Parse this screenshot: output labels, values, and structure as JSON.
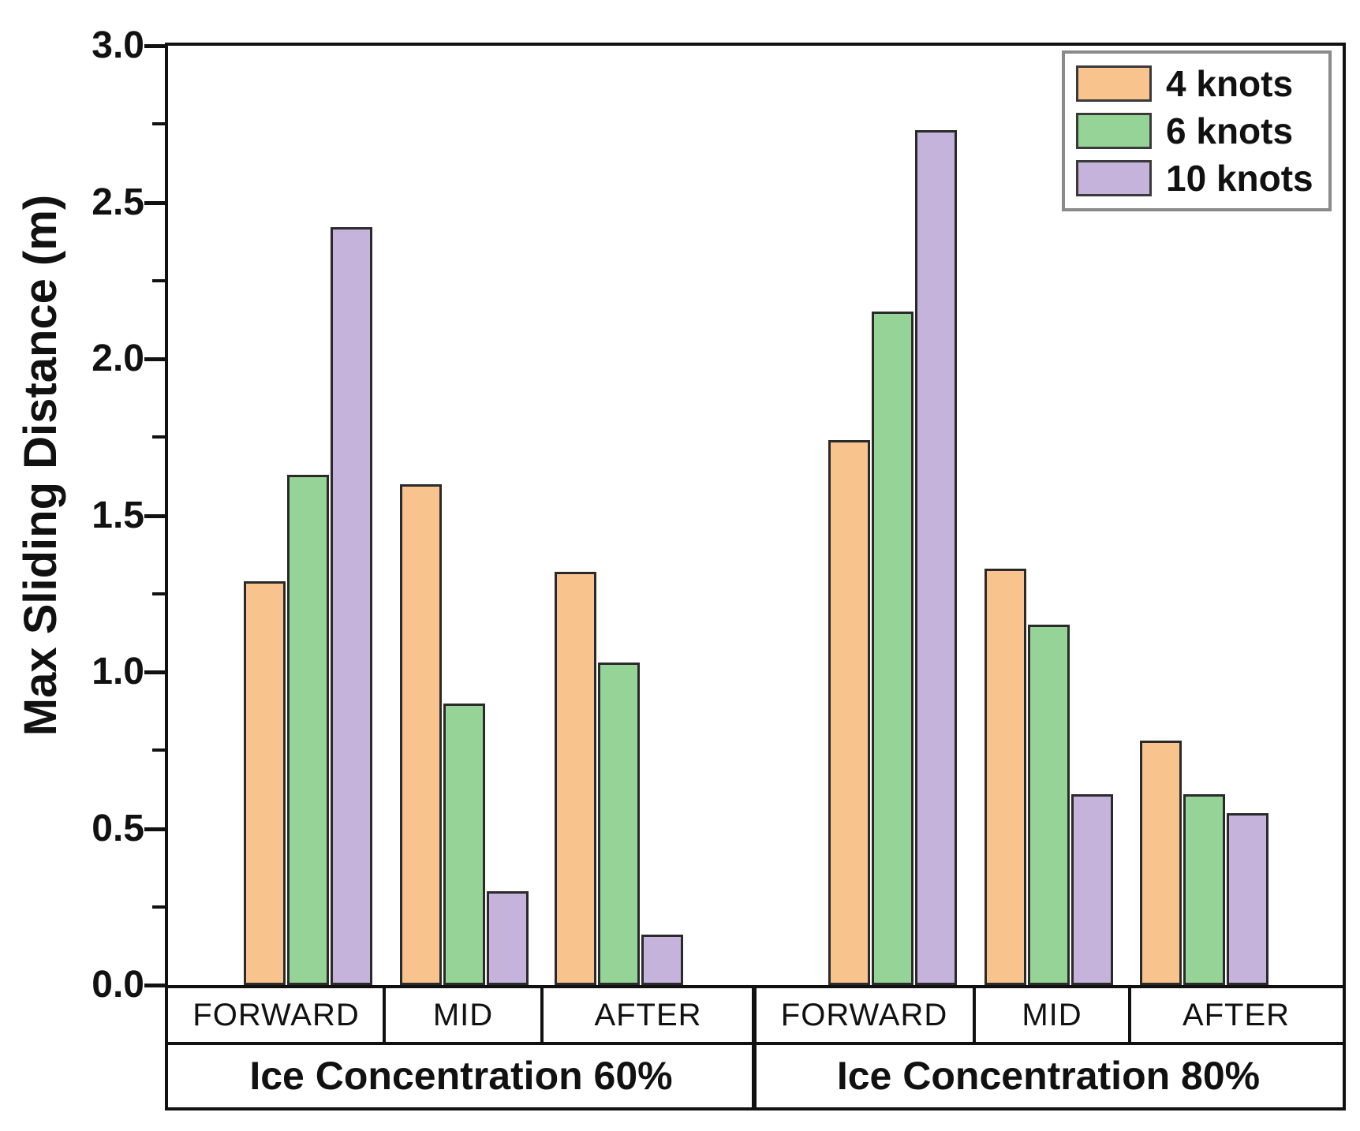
{
  "figure": {
    "background": "#ffffff"
  },
  "chart_data": {
    "type": "bar",
    "title": "",
    "xlabel": "",
    "ylabel": "Max Sliding Distance (m)",
    "ylim": [
      0.0,
      3.0
    ],
    "ytick_labels": [
      "0.0",
      "0.5",
      "1.0",
      "1.5",
      "2.0",
      "2.5",
      "3.0"
    ],
    "ytick_major_step": 0.5,
    "ytick_minor_step": 0.25,
    "grid": false,
    "legend_position": "top-right",
    "categories": [
      "FORWARD",
      "MID",
      "AFTER",
      "FORWARD",
      "MID",
      "AFTER"
    ],
    "group_labels": [
      "Ice Concentration 60%",
      "Ice Concentration 80%"
    ],
    "series": [
      {
        "name": "4 knots",
        "color": "#F9C38E",
        "values": [
          1.29,
          1.6,
          1.32,
          1.74,
          1.33,
          0.78
        ]
      },
      {
        "name": "6 knots",
        "color": "#95D496",
        "values": [
          1.63,
          0.9,
          1.03,
          2.15,
          1.15,
          0.61
        ]
      },
      {
        "name": "10 knots",
        "color": "#C5B3DB",
        "values": [
          2.42,
          0.3,
          0.16,
          2.73,
          0.61,
          0.55
        ]
      }
    ],
    "bar_border_color": "#2a2a2a",
    "axis_color": "#111111"
  }
}
